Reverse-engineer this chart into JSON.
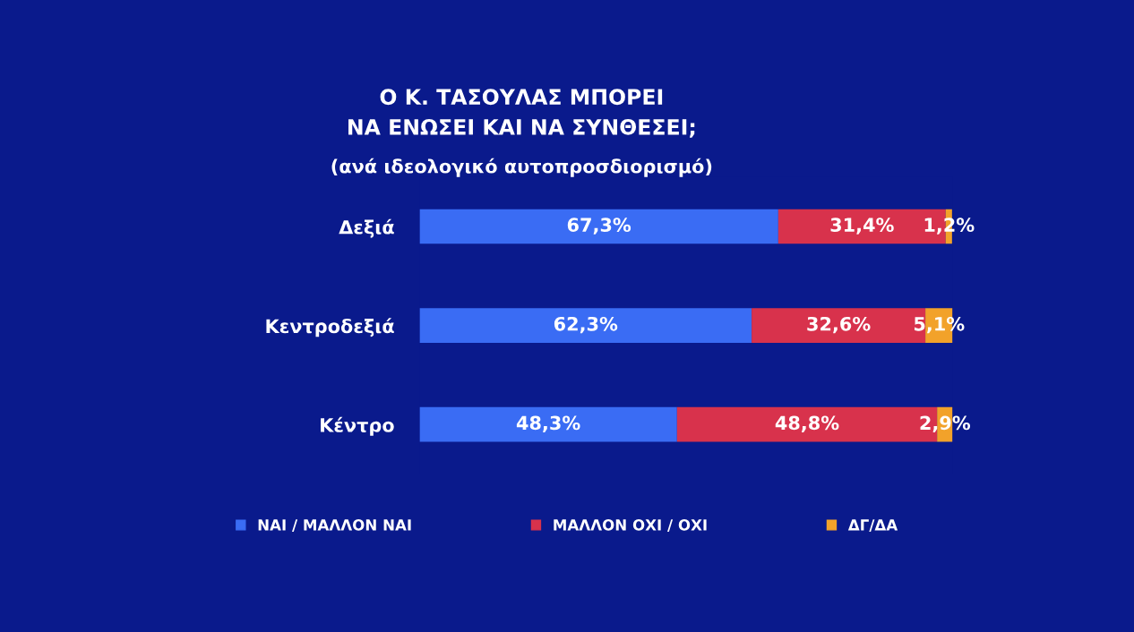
{
  "chart_data": {
    "type": "bar",
    "orientation": "horizontal",
    "stacked": true,
    "title": "Ο Κ. ΤΑΣΟΥΛΑΣ ΜΠΟΡΕΙ\nΝΑ ΕΝΩΣΕΙ ΚΑΙ ΝΑ ΣΥΝΘΕΣΕΙ;",
    "subtitle": "(ανά ιδεολογικό αυτοπροσδιορισμό)",
    "categories": [
      "Δεξιά",
      "Κεντροδεξιά",
      "Κέντρο"
    ],
    "series": [
      {
        "name": "ΝΑΙ / ΜΑΛΛΟΝ ΝΑΙ",
        "color": "#3a6cf4",
        "values": [
          67.3,
          62.3,
          48.3
        ],
        "value_labels": [
          "67,3%",
          "62,3%",
          "48,3%"
        ]
      },
      {
        "name": "ΜΑΛΛΟΝ ΟΧΙ / ΟΧΙ",
        "color": "#d8324c",
        "values": [
          31.4,
          32.6,
          48.8
        ],
        "value_labels": [
          "31,4%",
          "32,6%",
          "48,8%"
        ]
      },
      {
        "name": "ΔΓ/ΔΑ",
        "color": "#f2a22a",
        "values": [
          1.2,
          5.1,
          2.9
        ],
        "value_labels": [
          "1,2%",
          "5,1%",
          "2,9%"
        ]
      }
    ],
    "legend": "bottom",
    "grid": false
  }
}
